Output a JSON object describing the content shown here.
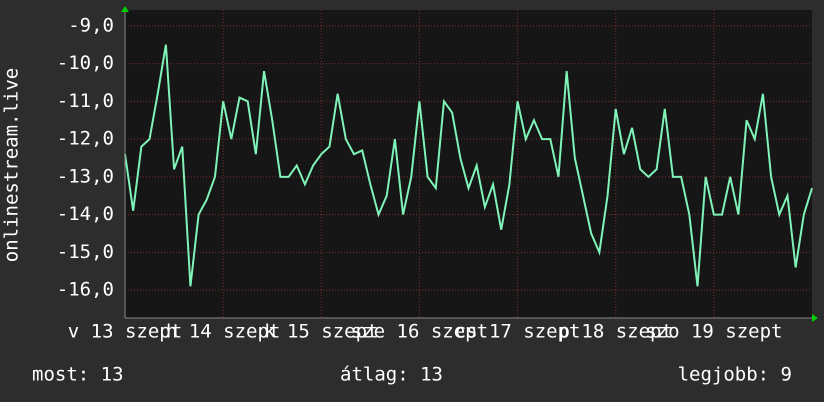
{
  "chart_data": {
    "type": "line",
    "y_label": "onlinestream.live",
    "x": [
      0,
      2,
      4,
      6,
      8,
      10,
      12,
      14,
      16,
      18,
      20,
      22,
      24,
      26,
      28,
      30,
      32,
      34,
      36,
      38,
      40,
      42,
      44,
      46,
      48,
      50,
      52,
      54,
      56,
      58,
      60,
      62,
      64,
      66,
      68,
      70,
      72,
      74,
      76,
      78,
      80,
      82,
      84,
      86,
      88,
      90,
      92,
      94,
      96,
      98,
      100,
      102,
      104,
      106,
      108,
      110,
      112,
      114,
      116,
      118,
      120,
      122,
      124,
      126,
      128,
      130,
      132,
      134,
      136,
      138,
      140,
      142,
      144,
      146,
      148,
      150,
      152,
      154,
      156,
      158,
      160,
      162,
      164,
      166,
      168
    ],
    "series": [
      {
        "name": "onlinestream.live",
        "color": "#7ff3b8",
        "values": [
          -12.4,
          -13.9,
          -12.2,
          -12.0,
          -10.8,
          -9.5,
          -12.8,
          -12.2,
          -15.9,
          -14.0,
          -13.6,
          -13.0,
          -11.0,
          -12.0,
          -10.9,
          -11.0,
          -12.4,
          -10.2,
          -11.5,
          -13.0,
          -13.0,
          -12.7,
          -13.2,
          -12.7,
          -12.4,
          -12.2,
          -10.8,
          -12.0,
          -12.4,
          -12.3,
          -13.2,
          -14.0,
          -13.5,
          -12.0,
          -14.0,
          -13.0,
          -11.0,
          -13.0,
          -13.3,
          -11.0,
          -11.3,
          -12.5,
          -13.3,
          -12.7,
          -13.8,
          -13.2,
          -14.4,
          -13.2,
          -11.0,
          -12.0,
          -11.5,
          -12.0,
          -12.0,
          -13.0,
          -10.2,
          -12.5,
          -13.5,
          -14.5,
          -15.0,
          -13.5,
          -11.2,
          -12.4,
          -11.7,
          -12.8,
          -13.0,
          -12.8,
          -11.2,
          -13.0,
          -13.0,
          -14.0,
          -15.9,
          -13.0,
          -14.0,
          -14.0,
          -13.0,
          -14.0,
          -11.5,
          -12.0,
          -10.8,
          -13.0,
          -14.0,
          -13.5,
          -15.4,
          -14.0,
          -13.3
        ]
      }
    ],
    "xlim": [
      0,
      168
    ],
    "xticks": [
      {
        "value": 0,
        "label": "v 13 szept"
      },
      {
        "value": 24,
        "label": "h 14 szept"
      },
      {
        "value": 48,
        "label": "k 15 szept"
      },
      {
        "value": 72,
        "label": "sze 16 szept"
      },
      {
        "value": 96,
        "label": "cs 17 szept"
      },
      {
        "value": 120,
        "label": "p 18 szept"
      },
      {
        "value": 144,
        "label": "szo 19 szept"
      }
    ],
    "ylim": [
      -16.74,
      -8.58
    ],
    "yticks": [
      {
        "value": -9,
        "label": "-9,0"
      },
      {
        "value": -10,
        "label": "-10,0"
      },
      {
        "value": -11,
        "label": "-11,0"
      },
      {
        "value": -12,
        "label": "-12,0"
      },
      {
        "value": -13,
        "label": "-13,0"
      },
      {
        "value": -14,
        "label": "-14,0"
      },
      {
        "value": -15,
        "label": "-15,0"
      },
      {
        "value": -16,
        "label": "-16,0"
      }
    ],
    "grid": true
  },
  "footer": {
    "current": "most: 13",
    "average": "átlag: 13",
    "best": "legjobb: 9"
  }
}
